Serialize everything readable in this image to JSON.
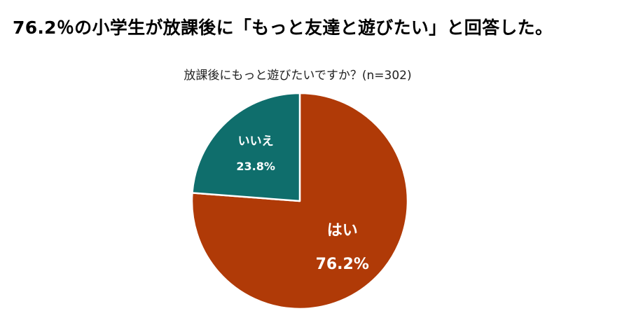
{
  "headline": "76.2％の小学生が放課後に「もっと友達と遊びたい」と回答した。",
  "chart_data": {
    "type": "pie",
    "title": "放課後にもっと遊びたいですか？(n=302)",
    "start_angle_deg": 0,
    "direction": "clockwise",
    "slices": [
      {
        "label": "はい",
        "value": 76.2,
        "value_label": "76.2%",
        "color": "#B03A07"
      },
      {
        "label": "いいえ",
        "value": 23.8,
        "value_label": "23.8%",
        "color": "#0F6E6C"
      }
    ]
  }
}
